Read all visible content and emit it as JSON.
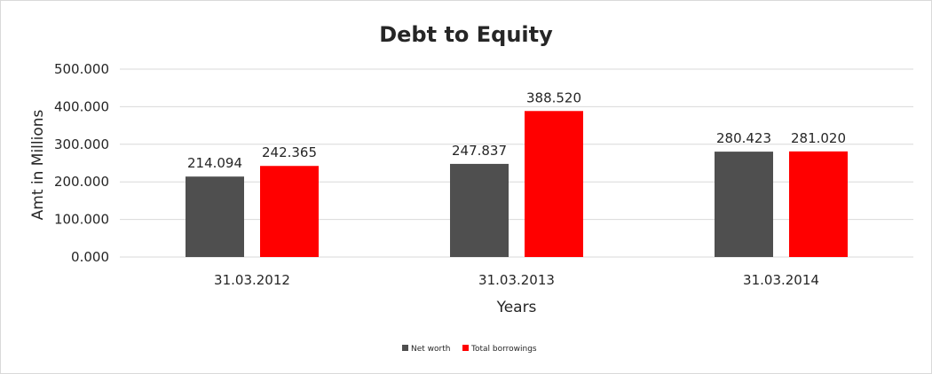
{
  "chart_data": {
    "type": "bar",
    "title": "Debt to Equity",
    "xlabel": "Years",
    "ylabel": "Amt in Millions",
    "categories": [
      "31.03.2012",
      "31.03.2013",
      "31.03.2014"
    ],
    "series": [
      {
        "name": "Net worth",
        "values": [
          214.094,
          247.837,
          280.423
        ],
        "labels": [
          "214.094",
          "247.837",
          "280.423"
        ],
        "color": "#4f4f4f"
      },
      {
        "name": "Total borrowings",
        "values": [
          242.365,
          388.52,
          281.02
        ],
        "labels": [
          "242.365",
          "388.520",
          "281.020"
        ],
        "color": "#ff0000"
      }
    ],
    "ylim": [
      0,
      500
    ],
    "yticks": [
      "0.000",
      "100.000",
      "200.000",
      "300.000",
      "400.000",
      "500.000"
    ],
    "grid": true,
    "legend_position": "bottom"
  }
}
